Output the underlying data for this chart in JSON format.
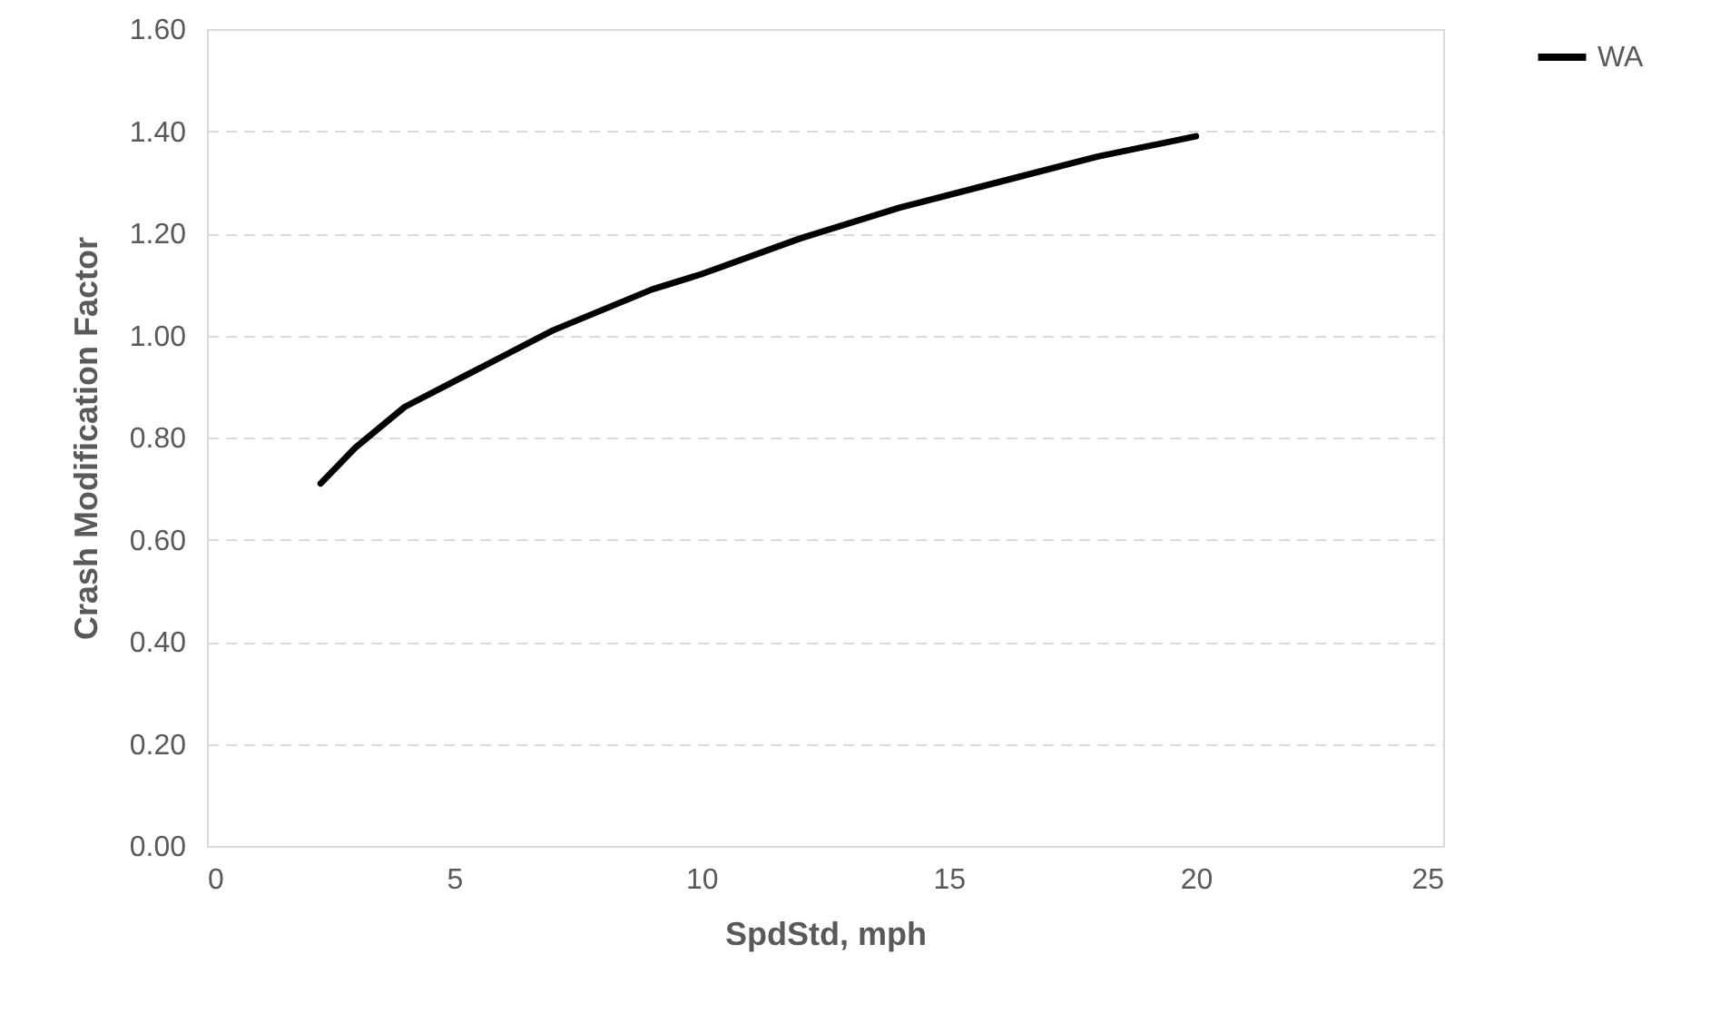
{
  "chart_data": {
    "type": "line",
    "xlabel": "SpdStd, mph",
    "ylabel": "Crash Modification Factor",
    "x": [
      2.3,
      3,
      4,
      5,
      6,
      7,
      8,
      9,
      10,
      12,
      14,
      16,
      18,
      20
    ],
    "series": [
      {
        "name": "WA",
        "color": "#000000",
        "values": [
          0.71,
          0.78,
          0.86,
          0.91,
          0.96,
          1.01,
          1.05,
          1.09,
          1.12,
          1.19,
          1.25,
          1.3,
          1.35,
          1.39
        ]
      }
    ],
    "xlim": [
      0,
      25
    ],
    "xticks": [
      0,
      5,
      10,
      15,
      20,
      25
    ],
    "ylim": [
      0,
      1.6
    ],
    "yticks": [
      {
        "value": 0,
        "label": "0.00"
      },
      {
        "value": 0.2,
        "label": "0.20"
      },
      {
        "value": 0.4,
        "label": "0.40"
      },
      {
        "value": 0.6,
        "label": "0.60"
      },
      {
        "value": 0.8,
        "label": "0.80"
      },
      {
        "value": 1,
        "label": "1.00"
      },
      {
        "value": 1.2,
        "label": "1.20"
      },
      {
        "value": 1.4,
        "label": "1.40"
      },
      {
        "value": 1.6,
        "label": "1.60"
      }
    ],
    "grid": "y",
    "legend": "right",
    "marker": "none",
    "line_style": "solid"
  }
}
